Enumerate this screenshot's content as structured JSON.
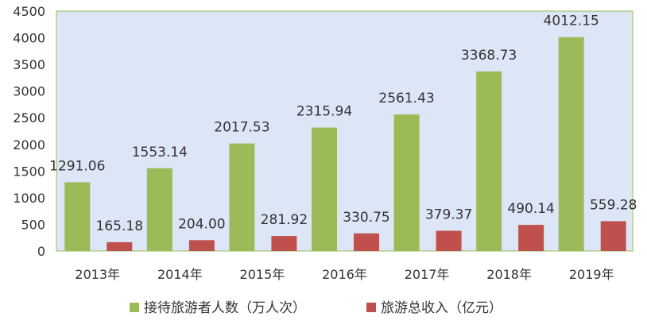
{
  "chart_data": {
    "type": "bar",
    "categories": [
      "2013年",
      "2014年",
      "2015年",
      "2016年",
      "2017年",
      "2018年",
      "2019年"
    ],
    "series": [
      {
        "name": "接待旅游者人数（万人次）",
        "color": "#9BBB59",
        "values": [
          1291.06,
          1553.14,
          2017.53,
          2315.94,
          2561.43,
          3368.73,
          4012.15
        ],
        "labels": [
          "1291.06",
          "1553.14",
          "2017.53",
          "2315.94",
          "2561.43",
          "3368.73",
          "4012.15"
        ]
      },
      {
        "name": "旅游总收入（亿元）",
        "color": "#C0504D",
        "values": [
          165.18,
          204.0,
          281.92,
          330.75,
          379.37,
          490.14,
          559.28
        ],
        "labels": [
          "165.18",
          "204.00",
          "281.92",
          "330.75",
          "379.37",
          "490.14",
          "559.28"
        ]
      }
    ],
    "ylim": [
      0,
      4500
    ],
    "yticks": [
      "0",
      "500",
      "1000",
      "1500",
      "2000",
      "2500",
      "3000",
      "3500",
      "4000",
      "4500"
    ],
    "grid": false,
    "legend": "bottom",
    "plot_background": "#DCE6F7"
  }
}
